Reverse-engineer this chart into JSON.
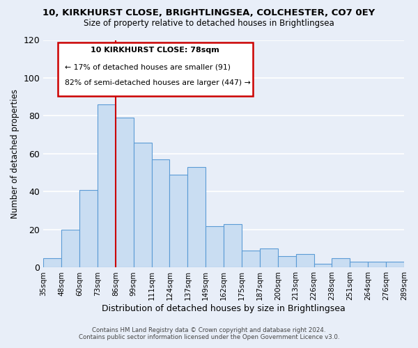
{
  "title": "10, KIRKHURST CLOSE, BRIGHTLINGSEA, COLCHESTER, CO7 0EY",
  "subtitle": "Size of property relative to detached houses in Brightlingsea",
  "xlabel": "Distribution of detached houses by size in Brightlingsea",
  "ylabel": "Number of detached properties",
  "footer_line1": "Contains HM Land Registry data © Crown copyright and database right 2024.",
  "footer_line2": "Contains public sector information licensed under the Open Government Licence v3.0.",
  "tick_labels": [
    "35sqm",
    "48sqm",
    "60sqm",
    "73sqm",
    "86sqm",
    "99sqm",
    "111sqm",
    "124sqm",
    "137sqm",
    "149sqm",
    "162sqm",
    "175sqm",
    "187sqm",
    "200sqm",
    "213sqm",
    "226sqm",
    "238sqm",
    "251sqm",
    "264sqm",
    "276sqm",
    "289sqm"
  ],
  "bar_values": [
    5,
    20,
    41,
    86,
    79,
    66,
    57,
    49,
    53,
    22,
    23,
    9,
    10,
    6,
    7,
    2,
    5,
    3,
    3,
    3
  ],
  "bar_color": "#c9ddf2",
  "bar_edge_color": "#5b9bd5",
  "vline_position": 3.5,
  "vline_color": "#cc0000",
  "annotation_title": "10 KIRKHURST CLOSE: 78sqm",
  "annotation_line1": "← 17% of detached houses are smaller (91)",
  "annotation_line2": "82% of semi-detached houses are larger (447) →",
  "annotation_box_facecolor": "#ffffff",
  "annotation_box_edgecolor": "#cc0000",
  "ylim": [
    0,
    120
  ],
  "yticks": [
    0,
    20,
    40,
    60,
    80,
    100,
    120
  ],
  "background_color": "#e8eef8",
  "grid_color": "#ffffff"
}
